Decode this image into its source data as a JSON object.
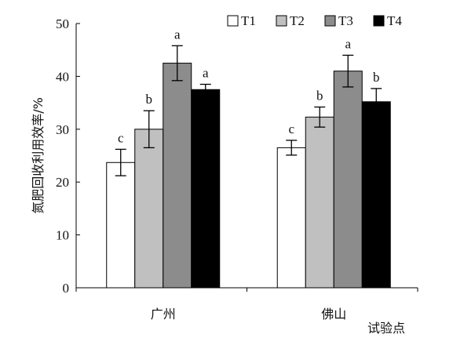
{
  "chart_data": {
    "type": "bar",
    "categories": [
      "广州",
      "佛山"
    ],
    "series": [
      {
        "name": "T1",
        "color": "#ffffff",
        "values": [
          23.7,
          26.5
        ],
        "errors": [
          2.5,
          1.4
        ],
        "letters": [
          "c",
          "c"
        ]
      },
      {
        "name": "T2",
        "color": "#c0c0c0",
        "values": [
          30.0,
          32.3
        ],
        "errors": [
          3.5,
          1.9
        ],
        "letters": [
          "b",
          "b"
        ]
      },
      {
        "name": "T3",
        "color": "#8c8c8c",
        "values": [
          42.5,
          41.0
        ],
        "errors": [
          3.3,
          3.0
        ],
        "letters": [
          "a",
          "a"
        ]
      },
      {
        "name": "T4",
        "color": "#000000",
        "values": [
          37.5,
          35.2
        ],
        "errors": [
          1.0,
          2.5
        ],
        "letters": [
          "a",
          "b"
        ]
      }
    ],
    "ylabel": "氮肥回收利用效率/%",
    "xlabel": "试验点",
    "ylim": [
      0,
      50
    ],
    "yticks": [
      0,
      10,
      20,
      30,
      40,
      50
    ],
    "grid": false,
    "legend": "top-right"
  }
}
